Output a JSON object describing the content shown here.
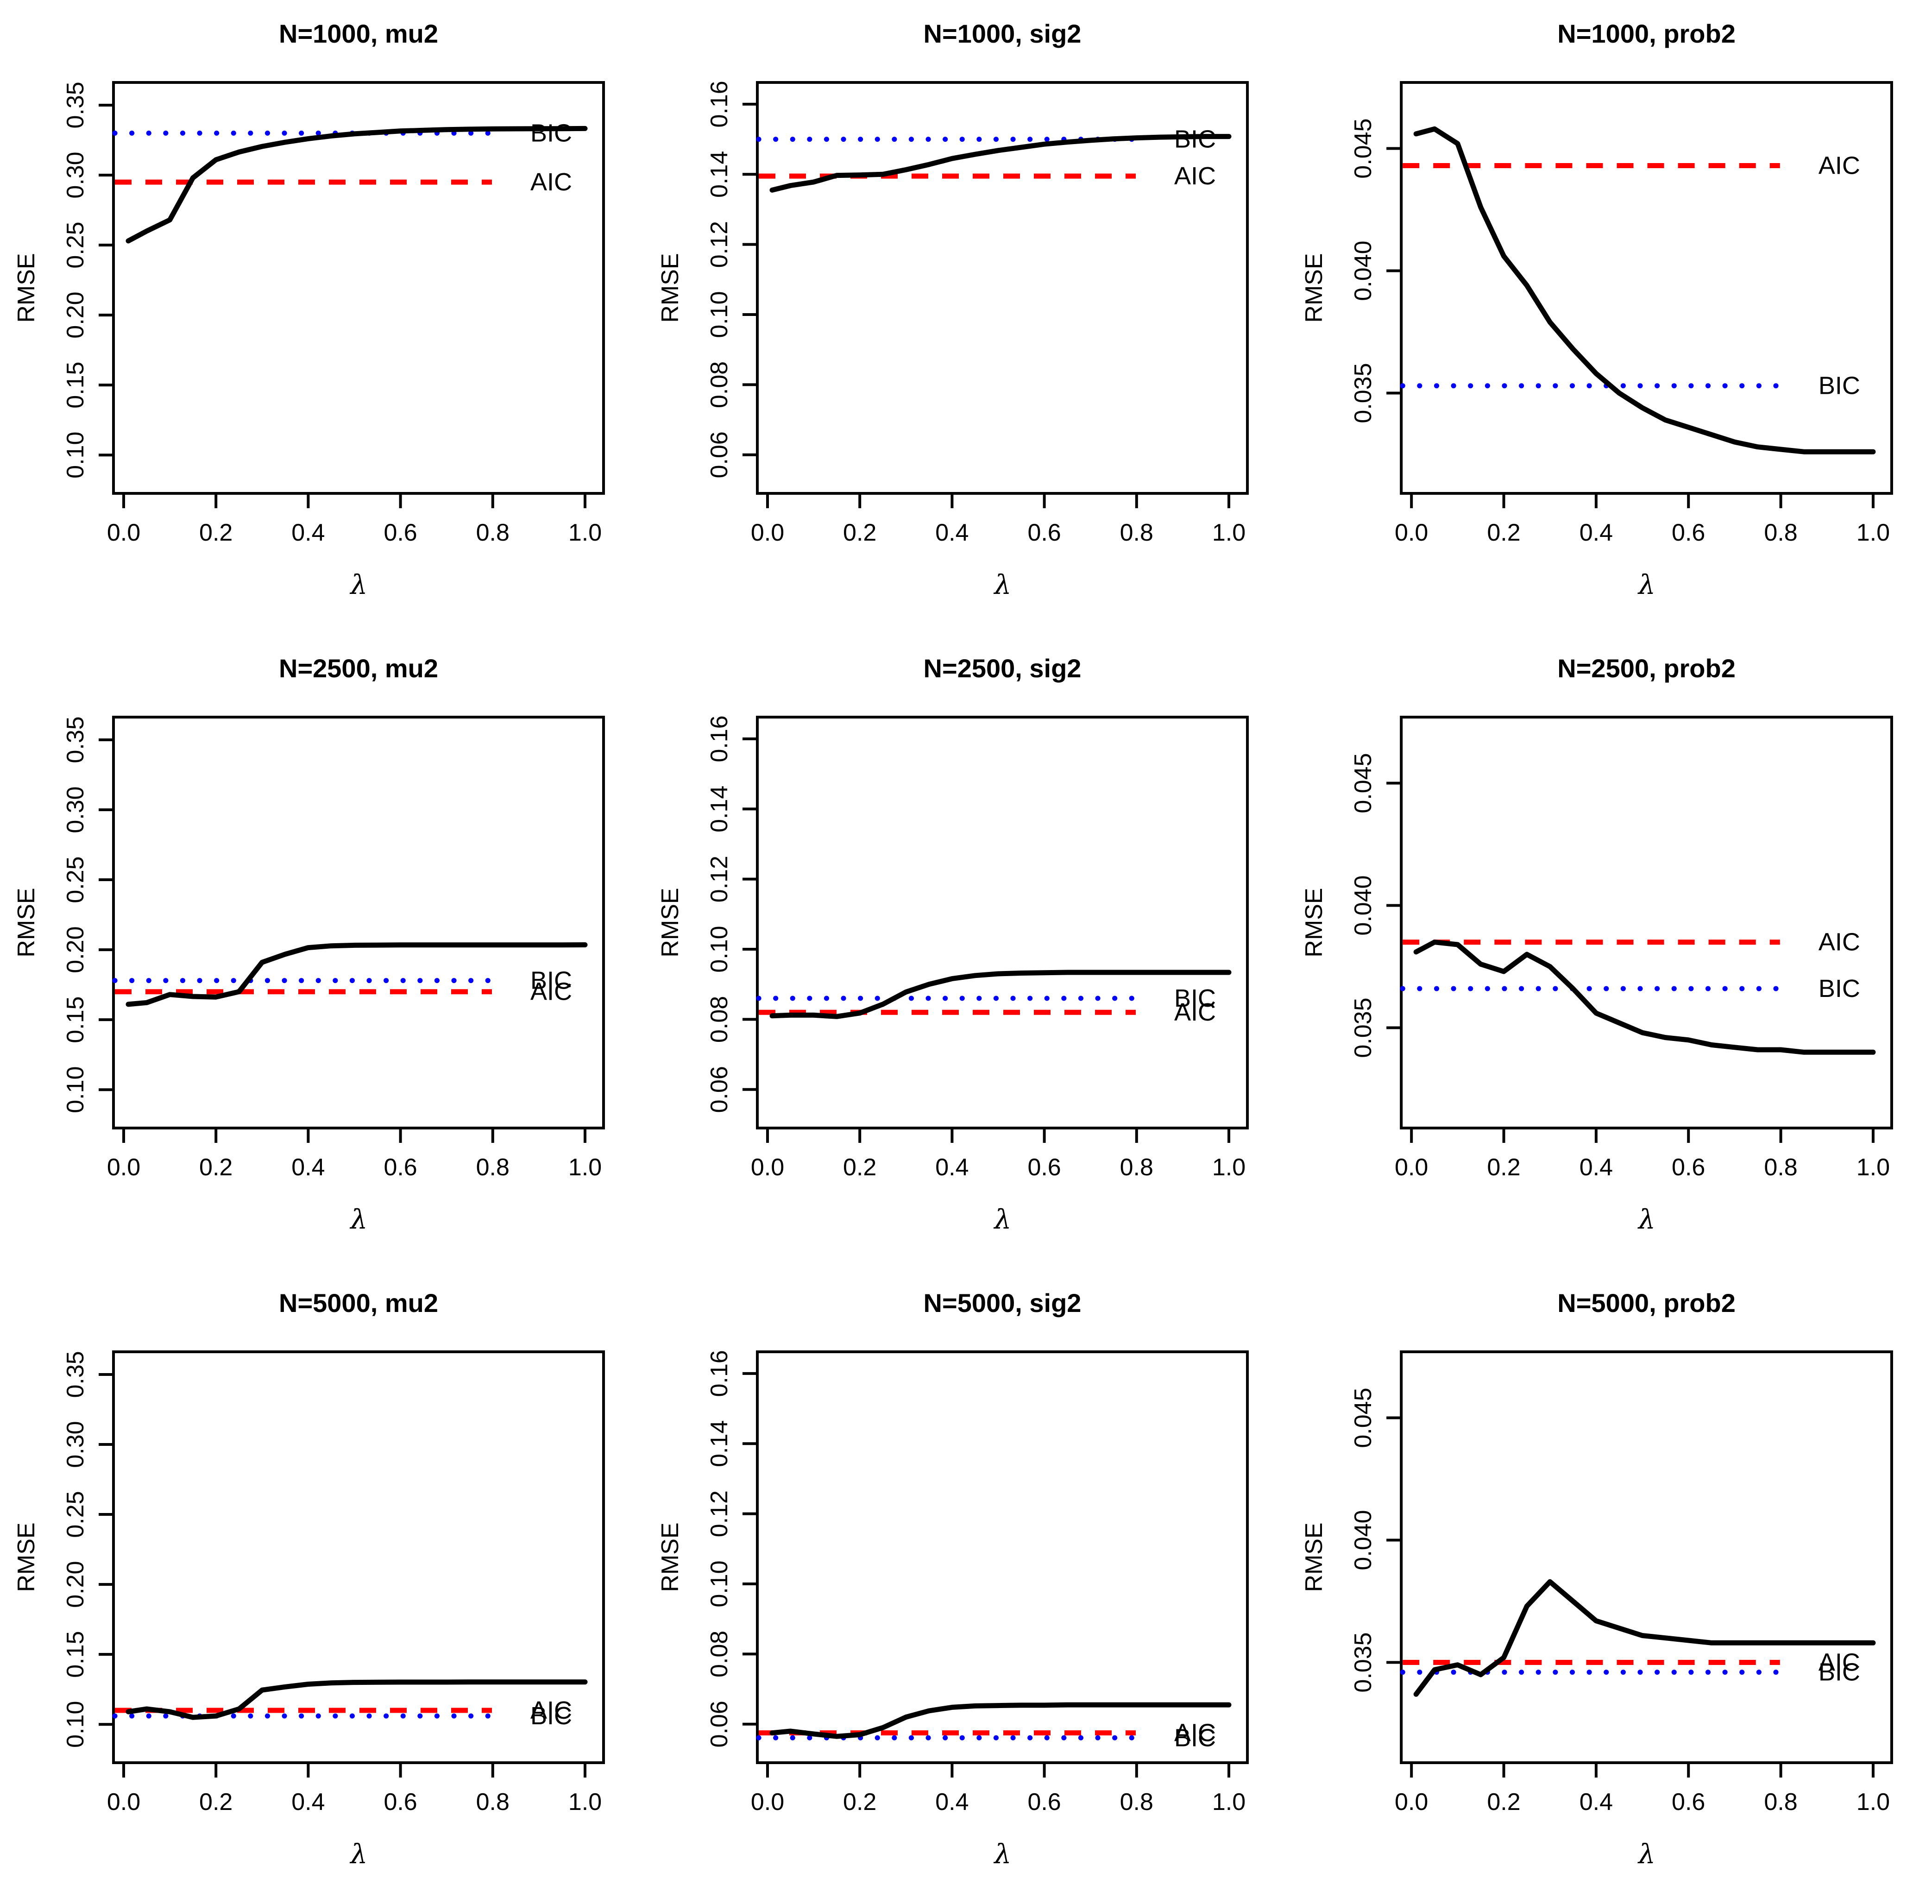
{
  "figure": {
    "description": "3x3 grid of RMSE vs lambda curves comparing penalized estimator with AIC and BIC reference levels",
    "rows": [
      "N=1000",
      "N=2500",
      "N=5000"
    ],
    "columns": [
      "mu2",
      "sig2",
      "prob2"
    ]
  },
  "colors": {
    "curve": "#000000",
    "aic": "#FF0000",
    "bic": "#0000FF",
    "axis": "#000000",
    "background": "#FFFFFF"
  },
  "chart_data": [
    {
      "type": "line",
      "title": "N=1000, mu2",
      "xlabel": "λ",
      "ylabel": "RMSE",
      "legend_position": "right-inline",
      "grid": false,
      "xlim": [
        0,
        1
      ],
      "ylim": [
        0.0726,
        0.3662
      ],
      "xticks": [
        {
          "v": 0.0,
          "label": "0.0"
        },
        {
          "v": 0.2,
          "label": "0.2"
        },
        {
          "v": 0.4,
          "label": "0.4"
        },
        {
          "v": 0.6,
          "label": "0.6"
        },
        {
          "v": 0.8,
          "label": "0.8"
        },
        {
          "v": 1.0,
          "label": "1.0"
        }
      ],
      "yticks": [
        {
          "v": 0.1,
          "label": "0.10"
        },
        {
          "v": 0.15,
          "label": "0.15"
        },
        {
          "v": 0.2,
          "label": "0.20"
        },
        {
          "v": 0.25,
          "label": "0.25"
        },
        {
          "v": 0.3,
          "label": "0.30"
        },
        {
          "v": 0.35,
          "label": "0.35"
        }
      ],
      "x": [
        0.01,
        0.05,
        0.1,
        0.15,
        0.2,
        0.25,
        0.3,
        0.35,
        0.4,
        0.45,
        0.5,
        0.55,
        0.6,
        0.65,
        0.7,
        0.75,
        0.8,
        0.85,
        0.9,
        0.95,
        1.0
      ],
      "curve": [
        0.253,
        0.26,
        0.268,
        0.298,
        0.311,
        0.3165,
        0.3205,
        0.3235,
        0.326,
        0.328,
        0.3295,
        0.3305,
        0.3315,
        0.332,
        0.3325,
        0.3328,
        0.333,
        0.3331,
        0.3332,
        0.3332,
        0.3333
      ],
      "aic": 0.295,
      "bic": 0.33,
      "aic_label": "AIC",
      "bic_label": "BIC"
    },
    {
      "type": "line",
      "title": "N=1000, sig2",
      "xlabel": "λ",
      "ylabel": "RMSE",
      "legend_position": "right-inline",
      "grid": false,
      "xlim": [
        0,
        1
      ],
      "ylim": [
        0.049,
        0.1662
      ],
      "xticks": [
        {
          "v": 0.0,
          "label": "0.0"
        },
        {
          "v": 0.2,
          "label": "0.2"
        },
        {
          "v": 0.4,
          "label": "0.4"
        },
        {
          "v": 0.6,
          "label": "0.6"
        },
        {
          "v": 0.8,
          "label": "0.8"
        },
        {
          "v": 1.0,
          "label": "1.0"
        }
      ],
      "yticks": [
        {
          "v": 0.06,
          "label": "0.06"
        },
        {
          "v": 0.08,
          "label": "0.08"
        },
        {
          "v": 0.1,
          "label": "0.10"
        },
        {
          "v": 0.12,
          "label": "0.12"
        },
        {
          "v": 0.14,
          "label": "0.14"
        },
        {
          "v": 0.16,
          "label": "0.16"
        }
      ],
      "x": [
        0.01,
        0.05,
        0.1,
        0.15,
        0.2,
        0.25,
        0.3,
        0.35,
        0.4,
        0.45,
        0.5,
        0.55,
        0.6,
        0.65,
        0.7,
        0.75,
        0.8,
        0.85,
        0.9,
        0.95,
        1.0
      ],
      "curve": [
        0.1355,
        0.1368,
        0.1378,
        0.1397,
        0.1398,
        0.14,
        0.1413,
        0.1428,
        0.1445,
        0.1457,
        0.1468,
        0.1477,
        0.1486,
        0.1492,
        0.1497,
        0.1501,
        0.1504,
        0.1506,
        0.1507,
        0.1508,
        0.1508
      ],
      "aic": 0.1395,
      "bic": 0.15,
      "aic_label": "AIC",
      "bic_label": "BIC"
    },
    {
      "type": "line",
      "title": "N=1000, prob2",
      "xlabel": "λ",
      "ylabel": "RMSE",
      "legend_position": "right-inline",
      "grid": false,
      "xlim": [
        0,
        1
      ],
      "ylim": [
        0.0309,
        0.0477
      ],
      "xticks": [
        {
          "v": 0.0,
          "label": "0.0"
        },
        {
          "v": 0.2,
          "label": "0.2"
        },
        {
          "v": 0.4,
          "label": "0.4"
        },
        {
          "v": 0.6,
          "label": "0.6"
        },
        {
          "v": 0.8,
          "label": "0.8"
        },
        {
          "v": 1.0,
          "label": "1.0"
        }
      ],
      "yticks": [
        {
          "v": 0.035,
          "label": "0.035"
        },
        {
          "v": 0.04,
          "label": "0.040"
        },
        {
          "v": 0.045,
          "label": "0.045"
        }
      ],
      "x": [
        0.01,
        0.05,
        0.1,
        0.15,
        0.2,
        0.25,
        0.3,
        0.35,
        0.4,
        0.45,
        0.5,
        0.55,
        0.6,
        0.65,
        0.7,
        0.75,
        0.8,
        0.85,
        0.9,
        0.95,
        1.0
      ],
      "curve": [
        0.0456,
        0.0458,
        0.0452,
        0.0426,
        0.0406,
        0.0394,
        0.0379,
        0.0368,
        0.0358,
        0.035,
        0.0344,
        0.0339,
        0.0336,
        0.0333,
        0.033,
        0.0328,
        0.0327,
        0.0326,
        0.0326,
        0.0326,
        0.0326
      ],
      "aic": 0.0443,
      "bic": 0.0353,
      "aic_label": "AIC",
      "bic_label": "BIC"
    },
    {
      "type": "line",
      "title": "N=2500, mu2",
      "xlabel": "λ",
      "ylabel": "RMSE",
      "legend_position": "right-inline",
      "grid": false,
      "xlim": [
        0,
        1
      ],
      "ylim": [
        0.0726,
        0.3662
      ],
      "xticks": [
        {
          "v": 0.0,
          "label": "0.0"
        },
        {
          "v": 0.2,
          "label": "0.2"
        },
        {
          "v": 0.4,
          "label": "0.4"
        },
        {
          "v": 0.6,
          "label": "0.6"
        },
        {
          "v": 0.8,
          "label": "0.8"
        },
        {
          "v": 1.0,
          "label": "1.0"
        }
      ],
      "yticks": [
        {
          "v": 0.1,
          "label": "0.10"
        },
        {
          "v": 0.15,
          "label": "0.15"
        },
        {
          "v": 0.2,
          "label": "0.20"
        },
        {
          "v": 0.25,
          "label": "0.25"
        },
        {
          "v": 0.3,
          "label": "0.30"
        },
        {
          "v": 0.35,
          "label": "0.35"
        }
      ],
      "x": [
        0.01,
        0.05,
        0.1,
        0.15,
        0.2,
        0.25,
        0.3,
        0.35,
        0.4,
        0.45,
        0.5,
        0.55,
        0.6,
        0.65,
        0.7,
        0.75,
        0.8,
        0.85,
        0.9,
        0.95,
        1.0
      ],
      "curve": [
        0.161,
        0.1622,
        0.168,
        0.1666,
        0.1662,
        0.17,
        0.191,
        0.1968,
        0.2015,
        0.2028,
        0.2032,
        0.2033,
        0.2034,
        0.2034,
        0.2034,
        0.2034,
        0.2034,
        0.2034,
        0.2034,
        0.2034,
        0.2035
      ],
      "aic": 0.17,
      "bic": 0.178,
      "aic_label": "AIC",
      "bic_label": "BIC"
    },
    {
      "type": "line",
      "title": "N=2500, sig2",
      "xlabel": "λ",
      "ylabel": "RMSE",
      "legend_position": "right-inline",
      "grid": false,
      "xlim": [
        0,
        1
      ],
      "ylim": [
        0.049,
        0.1662
      ],
      "xticks": [
        {
          "v": 0.0,
          "label": "0.0"
        },
        {
          "v": 0.2,
          "label": "0.2"
        },
        {
          "v": 0.4,
          "label": "0.4"
        },
        {
          "v": 0.6,
          "label": "0.6"
        },
        {
          "v": 0.8,
          "label": "0.8"
        },
        {
          "v": 1.0,
          "label": "1.0"
        }
      ],
      "yticks": [
        {
          "v": 0.06,
          "label": "0.06"
        },
        {
          "v": 0.08,
          "label": "0.08"
        },
        {
          "v": 0.1,
          "label": "0.10"
        },
        {
          "v": 0.12,
          "label": "0.12"
        },
        {
          "v": 0.14,
          "label": "0.14"
        },
        {
          "v": 0.16,
          "label": "0.16"
        }
      ],
      "x": [
        0.01,
        0.05,
        0.1,
        0.15,
        0.2,
        0.25,
        0.3,
        0.35,
        0.4,
        0.45,
        0.5,
        0.55,
        0.6,
        0.65,
        0.7,
        0.75,
        0.8,
        0.85,
        0.9,
        0.95,
        1.0
      ],
      "curve": [
        0.081,
        0.0812,
        0.0812,
        0.0808,
        0.0818,
        0.0843,
        0.0878,
        0.09,
        0.0916,
        0.0925,
        0.093,
        0.0932,
        0.0933,
        0.0934,
        0.0934,
        0.0934,
        0.0934,
        0.0934,
        0.0934,
        0.0934,
        0.0934
      ],
      "aic": 0.082,
      "bic": 0.086,
      "aic_label": "AIC",
      "bic_label": "BIC"
    },
    {
      "type": "line",
      "title": "N=2500, prob2",
      "xlabel": "λ",
      "ylabel": "RMSE",
      "legend_position": "right-inline",
      "grid": false,
      "xlim": [
        0,
        1
      ],
      "ylim": [
        0.0309,
        0.0477
      ],
      "xticks": [
        {
          "v": 0.0,
          "label": "0.0"
        },
        {
          "v": 0.2,
          "label": "0.2"
        },
        {
          "v": 0.4,
          "label": "0.4"
        },
        {
          "v": 0.6,
          "label": "0.6"
        },
        {
          "v": 0.8,
          "label": "0.8"
        },
        {
          "v": 1.0,
          "label": "1.0"
        }
      ],
      "yticks": [
        {
          "v": 0.035,
          "label": "0.035"
        },
        {
          "v": 0.04,
          "label": "0.040"
        },
        {
          "v": 0.045,
          "label": "0.045"
        }
      ],
      "x": [
        0.01,
        0.05,
        0.1,
        0.15,
        0.2,
        0.25,
        0.3,
        0.35,
        0.4,
        0.45,
        0.5,
        0.55,
        0.6,
        0.65,
        0.7,
        0.75,
        0.8,
        0.85,
        0.9,
        0.95,
        1.0
      ],
      "curve": [
        0.0381,
        0.0385,
        0.0384,
        0.0376,
        0.0373,
        0.038,
        0.0375,
        0.0366,
        0.0356,
        0.0352,
        0.0348,
        0.0346,
        0.0345,
        0.0343,
        0.0342,
        0.0341,
        0.0341,
        0.034,
        0.034,
        0.034,
        0.034
      ],
      "aic": 0.0385,
      "bic": 0.0366,
      "aic_label": "AIC",
      "bic_label": "BIC"
    },
    {
      "type": "line",
      "title": "N=5000, mu2",
      "xlabel": "λ",
      "ylabel": "RMSE",
      "legend_position": "right-inline",
      "grid": false,
      "xlim": [
        0,
        1
      ],
      "ylim": [
        0.0726,
        0.3662
      ],
      "xticks": [
        {
          "v": 0.0,
          "label": "0.0"
        },
        {
          "v": 0.2,
          "label": "0.2"
        },
        {
          "v": 0.4,
          "label": "0.4"
        },
        {
          "v": 0.6,
          "label": "0.6"
        },
        {
          "v": 0.8,
          "label": "0.8"
        },
        {
          "v": 1.0,
          "label": "1.0"
        }
      ],
      "yticks": [
        {
          "v": 0.1,
          "label": "0.10"
        },
        {
          "v": 0.15,
          "label": "0.15"
        },
        {
          "v": 0.2,
          "label": "0.20"
        },
        {
          "v": 0.25,
          "label": "0.25"
        },
        {
          "v": 0.3,
          "label": "0.30"
        },
        {
          "v": 0.35,
          "label": "0.35"
        }
      ],
      "x": [
        0.01,
        0.05,
        0.1,
        0.15,
        0.2,
        0.25,
        0.3,
        0.35,
        0.4,
        0.45,
        0.5,
        0.55,
        0.6,
        0.65,
        0.7,
        0.75,
        0.8,
        0.85,
        0.9,
        0.95,
        1.0
      ],
      "curve": [
        0.109,
        0.111,
        0.109,
        0.105,
        0.106,
        0.111,
        0.1245,
        0.1268,
        0.1287,
        0.1296,
        0.13,
        0.1301,
        0.1302,
        0.1302,
        0.1302,
        0.1303,
        0.1303,
        0.1303,
        0.1303,
        0.1303,
        0.1303
      ],
      "aic": 0.11,
      "bic": 0.106,
      "aic_label": "AIC",
      "bic_label": "BIC"
    },
    {
      "type": "line",
      "title": "N=5000, sig2",
      "xlabel": "λ",
      "ylabel": "RMSE",
      "legend_position": "right-inline",
      "grid": false,
      "xlim": [
        0,
        1
      ],
      "ylim": [
        0.049,
        0.1662
      ],
      "xticks": [
        {
          "v": 0.0,
          "label": "0.0"
        },
        {
          "v": 0.2,
          "label": "0.2"
        },
        {
          "v": 0.4,
          "label": "0.4"
        },
        {
          "v": 0.6,
          "label": "0.6"
        },
        {
          "v": 0.8,
          "label": "0.8"
        },
        {
          "v": 1.0,
          "label": "1.0"
        }
      ],
      "yticks": [
        {
          "v": 0.06,
          "label": "0.06"
        },
        {
          "v": 0.08,
          "label": "0.08"
        },
        {
          "v": 0.1,
          "label": "0.10"
        },
        {
          "v": 0.12,
          "label": "0.12"
        },
        {
          "v": 0.14,
          "label": "0.14"
        },
        {
          "v": 0.16,
          "label": "0.16"
        }
      ],
      "x": [
        0.01,
        0.05,
        0.1,
        0.15,
        0.2,
        0.25,
        0.3,
        0.35,
        0.4,
        0.45,
        0.5,
        0.55,
        0.6,
        0.65,
        0.7,
        0.75,
        0.8,
        0.85,
        0.9,
        0.95,
        1.0
      ],
      "curve": [
        0.0575,
        0.058,
        0.0572,
        0.0565,
        0.057,
        0.059,
        0.062,
        0.0638,
        0.0648,
        0.0652,
        0.0653,
        0.0654,
        0.0654,
        0.0655,
        0.0655,
        0.0655,
        0.0655,
        0.0655,
        0.0655,
        0.0655,
        0.0655
      ],
      "aic": 0.0575,
      "bic": 0.0561,
      "aic_label": "AIC",
      "bic_label": "BIC"
    },
    {
      "type": "line",
      "title": "N=5000, prob2",
      "xlabel": "λ",
      "ylabel": "RMSE",
      "legend_position": "right-inline",
      "grid": false,
      "xlim": [
        0,
        1
      ],
      "ylim": [
        0.0309,
        0.0477
      ],
      "xticks": [
        {
          "v": 0.0,
          "label": "0.0"
        },
        {
          "v": 0.2,
          "label": "0.2"
        },
        {
          "v": 0.4,
          "label": "0.4"
        },
        {
          "v": 0.6,
          "label": "0.6"
        },
        {
          "v": 0.8,
          "label": "0.8"
        },
        {
          "v": 1.0,
          "label": "1.0"
        }
      ],
      "yticks": [
        {
          "v": 0.035,
          "label": "0.035"
        },
        {
          "v": 0.04,
          "label": "0.040"
        },
        {
          "v": 0.045,
          "label": "0.045"
        }
      ],
      "x": [
        0.01,
        0.05,
        0.1,
        0.15,
        0.2,
        0.25,
        0.3,
        0.35,
        0.4,
        0.45,
        0.5,
        0.55,
        0.6,
        0.65,
        0.7,
        0.75,
        0.8,
        0.85,
        0.9,
        0.95,
        1.0
      ],
      "curve": [
        0.0337,
        0.0347,
        0.0349,
        0.0345,
        0.0352,
        0.0373,
        0.0383,
        0.0375,
        0.0367,
        0.0364,
        0.0361,
        0.036,
        0.0359,
        0.0358,
        0.0358,
        0.0358,
        0.0358,
        0.0358,
        0.0358,
        0.0358,
        0.0358
      ],
      "aic": 0.035,
      "bic": 0.0346,
      "aic_label": "AIC",
      "bic_label": "BIC"
    }
  ]
}
